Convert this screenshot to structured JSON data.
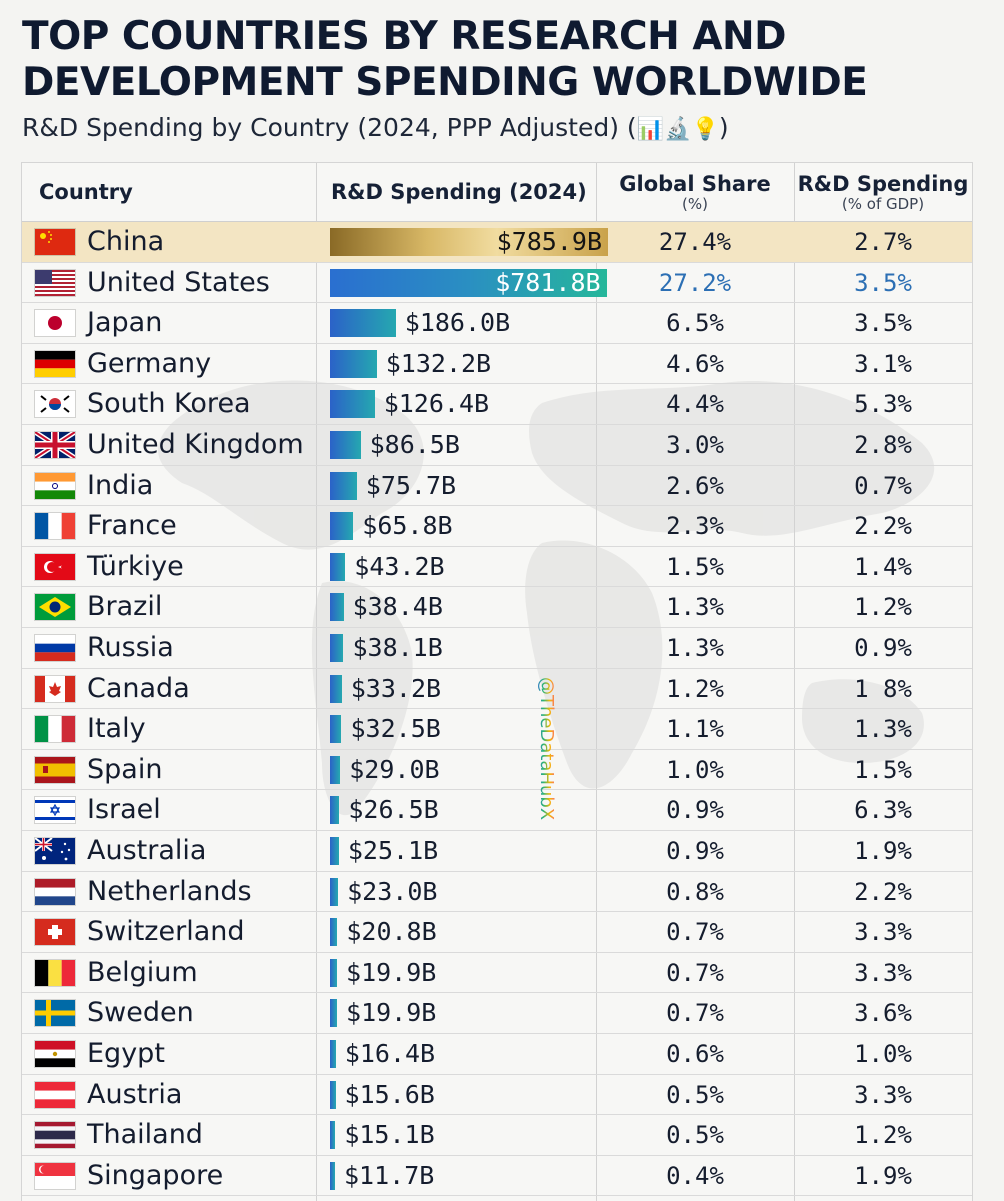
{
  "title": "TOP  COUNTRIES BY RESEARCH AND DEVELOPMENT SPENDING WORLDWIDE",
  "subtitle": "R&D Spending by Country (2024, PPP Adjusted) (",
  "subtitle_icons": "📊🔬💡",
  "subtitle_close": ")",
  "watermark": "@TheDataHubX",
  "headers": {
    "country": "Country",
    "spending": "R&D Spending (2024)",
    "share": "Global Share",
    "share_unit": "(%)",
    "gdp": "R&D Spending",
    "gdp_unit": "(% of GDP)"
  },
  "colors": {
    "gold": "#c9a24a",
    "teal": "#23b39a",
    "blue": "#2a73c7",
    "highlight_row": "#f3e5c3"
  },
  "chart_data": {
    "type": "table",
    "title": "TOP  COUNTRIES BY RESEARCH AND DEVELOPMENT SPENDING WORLDWIDE",
    "subtitle": "R&D Spending by Country (2024, PPP Adjusted)",
    "columns": [
      "Country",
      "R&D Spending (2024)",
      "Global Share (%)",
      "R&D Spending (% of GDP)"
    ],
    "rows": [
      {
        "country": "China",
        "spending": 785.9,
        "spending_label": "$785.9B",
        "share": "27.4%",
        "gdp": "2.7%",
        "flag": "china"
      },
      {
        "country": "United States",
        "spending": 781.8,
        "spending_label": "$781.8B",
        "share": "27.2%",
        "gdp": "3.5%",
        "flag": "usa"
      },
      {
        "country": "Japan",
        "spending": 186.0,
        "spending_label": "$186.0B",
        "share": "6.5%",
        "gdp": "3.5%",
        "flag": "japan"
      },
      {
        "country": "Germany",
        "spending": 132.2,
        "spending_label": "$132.2B",
        "share": "4.6%",
        "gdp": "3.1%",
        "flag": "germany"
      },
      {
        "country": "South Korea",
        "spending": 126.4,
        "spending_label": "$126.4B",
        "share": "4.4%",
        "gdp": "5.3%",
        "flag": "korea"
      },
      {
        "country": "United Kingdom",
        "spending": 86.5,
        "spending_label": "$86.5B",
        "share": "3.0%",
        "gdp": "2.8%",
        "flag": "uk"
      },
      {
        "country": "India",
        "spending": 75.7,
        "spending_label": "$75.7B",
        "share": "2.6%",
        "gdp": "0.7%",
        "flag": "india"
      },
      {
        "country": "France",
        "spending": 65.8,
        "spending_label": "$65.8B",
        "share": "2.3%",
        "gdp": "2.2%",
        "flag": "france"
      },
      {
        "country": "Türkiye",
        "spending": 43.2,
        "spending_label": "$43.2B",
        "share": "1.5%",
        "gdp": "1.4%",
        "flag": "turkey"
      },
      {
        "country": "Brazil",
        "spending": 38.4,
        "spending_label": "$38.4B",
        "share": "1.3%",
        "gdp": "1.2%",
        "flag": "brazil"
      },
      {
        "country": "Russia",
        "spending": 38.1,
        "spending_label": "$38.1B",
        "share": "1.3%",
        "gdp": "0.9%",
        "flag": "russia"
      },
      {
        "country": "Canada",
        "spending": 33.2,
        "spending_label": "$33.2B",
        "share": "1.2%",
        "gdp": "1 8%",
        "flag": "canada"
      },
      {
        "country": "Italy",
        "spending": 32.5,
        "spending_label": "$32.5B",
        "share": "1.1%",
        "gdp": "1.3%",
        "flag": "italy"
      },
      {
        "country": "Spain",
        "spending": 29.0,
        "spending_label": "$29.0B",
        "share": "1.0%",
        "gdp": "1.5%",
        "flag": "spain"
      },
      {
        "country": "Israel",
        "spending": 26.5,
        "spending_label": "$26.5B",
        "share": "0.9%",
        "gdp": "6.3%",
        "flag": "israel"
      },
      {
        "country": "Australia",
        "spending": 25.1,
        "spending_label": "$25.1B",
        "share": "0.9%",
        "gdp": "1.9%",
        "flag": "australia"
      },
      {
        "country": "Netherlands",
        "spending": 23.0,
        "spending_label": "$23.0B",
        "share": "0.8%",
        "gdp": "2.2%",
        "flag": "netherlands"
      },
      {
        "country": "Switzerland",
        "spending": 20.8,
        "spending_label": "$20.8B",
        "share": "0.7%",
        "gdp": "3.3%",
        "flag": "switzerland"
      },
      {
        "country": "Belgium",
        "spending": 19.9,
        "spending_label": "$19.9B",
        "share": "0.7%",
        "gdp": "3.3%",
        "flag": "belgium"
      },
      {
        "country": "Sweden",
        "spending": 19.9,
        "spending_label": "$19.9B",
        "share": "0.7%",
        "gdp": "3.6%",
        "flag": "sweden"
      },
      {
        "country": "Egypt",
        "spending": 16.4,
        "spending_label": "$16.4B",
        "share": "0.6%",
        "gdp": "1.0%",
        "flag": "egypt"
      },
      {
        "country": "Austria",
        "spending": 15.6,
        "spending_label": "$15.6B",
        "share": "0.5%",
        "gdp": "3.3%",
        "flag": "austria"
      },
      {
        "country": "Thailand",
        "spending": 15.1,
        "spending_label": "$15.1B",
        "share": "0.5%",
        "gdp": "1.2%",
        "flag": "thailand"
      },
      {
        "country": "Singapore",
        "spending": 11.7,
        "spending_label": "$11.7B",
        "share": "0.4%",
        "gdp": "1.9%",
        "flag": "singapore"
      }
    ]
  }
}
